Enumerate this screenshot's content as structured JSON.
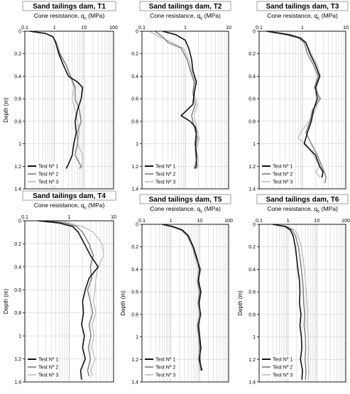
{
  "legend_prefix": "Test Nº ",
  "colors": {
    "test1": "#111111",
    "test2": "#7a7a7a",
    "test3": "#bdbdbd",
    "grid": "#c8c8c8",
    "frame": "#000000"
  },
  "chart_data": [
    {
      "type": "line",
      "title": "Sand tailings dam, T1",
      "xlabel": "Cone resistance, q",
      "xlabel_sub": "c",
      "xlabel_unit": " (MPa)",
      "ylabel": "Depth (m)",
      "xscale": "log",
      "xlim": [
        0.1,
        100
      ],
      "xticks": [
        0.1,
        1,
        10,
        100
      ],
      "xtick_labels": [
        "0.1",
        "1",
        "10",
        "100"
      ],
      "ylim": [
        0,
        1.4
      ],
      "yticks": [
        0,
        0.2,
        0.4,
        0.6,
        0.8,
        1,
        1.2,
        1.4
      ],
      "ytick_labels": [
        "0",
        "0.2",
        "0.4",
        "0.6",
        "0.8",
        "1",
        "1.2",
        "1.4"
      ],
      "legend_position": "bottom-left",
      "series": [
        {
          "name": "1",
          "depth": [
            0.0,
            0.02,
            0.05,
            0.1,
            0.2,
            0.3,
            0.4,
            0.45,
            0.5,
            0.6,
            0.7,
            0.8,
            0.9,
            1.0,
            1.1,
            1.18,
            1.22
          ],
          "qc": [
            0.15,
            0.5,
            0.9,
            1.1,
            1.4,
            2.0,
            3.0,
            6.0,
            9.0,
            8.0,
            6.0,
            5.0,
            5.5,
            4.5,
            4.0,
            3.0,
            2.5
          ]
        },
        {
          "name": "2",
          "depth": [
            0.0,
            0.02,
            0.05,
            0.1,
            0.2,
            0.3,
            0.4,
            0.5,
            0.6,
            0.7,
            0.8,
            0.9,
            1.0,
            1.1,
            1.2,
            1.22
          ],
          "qc": [
            0.15,
            0.5,
            0.9,
            1.1,
            1.5,
            2.5,
            3.5,
            5.0,
            5.0,
            7.0,
            8.0,
            6.0,
            6.0,
            5.0,
            8.0,
            7.0
          ]
        },
        {
          "name": "3",
          "depth": [
            0.0,
            0.02,
            0.05,
            0.1,
            0.2,
            0.3,
            0.4,
            0.5,
            0.6,
            0.7,
            0.8,
            0.9,
            1.0,
            1.1,
            1.2,
            1.22
          ],
          "qc": [
            0.15,
            0.5,
            0.9,
            1.2,
            1.6,
            2.5,
            3.5,
            4.5,
            4.0,
            5.0,
            6.0,
            7.0,
            6.0,
            9.0,
            9.0,
            8.0
          ]
        }
      ]
    },
    {
      "type": "line",
      "title": "Sand tailings dam, T2",
      "xlabel": "Cone resistance, q",
      "xlabel_sub": "c",
      "xlabel_unit": " (MPa)",
      "ylabel": "",
      "xscale": "log",
      "xlim": [
        0.1,
        10
      ],
      "xticks": [
        0.1,
        1,
        10
      ],
      "xtick_labels": [
        "0.1",
        "1",
        "10"
      ],
      "ylim": [
        0,
        1.4
      ],
      "yticks": [
        0,
        0.2,
        0.4,
        0.6,
        0.8,
        1,
        1.2,
        1.4
      ],
      "ytick_labels": [
        "0",
        "0.2",
        "0.4",
        "0.6",
        "0.8",
        "1",
        "1.2",
        "1.4"
      ],
      "legend_position": "bottom-left",
      "series": [
        {
          "name": "1",
          "depth": [
            0.0,
            0.03,
            0.08,
            0.15,
            0.25,
            0.35,
            0.45,
            0.55,
            0.65,
            0.7,
            0.75,
            0.8,
            0.85,
            0.9,
            1.0,
            1.1,
            1.2,
            1.22
          ],
          "qc": [
            0.3,
            0.6,
            1.0,
            1.2,
            1.4,
            1.5,
            1.8,
            1.6,
            1.5,
            1.1,
            0.8,
            1.3,
            1.7,
            1.8,
            1.7,
            1.8,
            1.8,
            1.7
          ]
        },
        {
          "name": "2",
          "depth": [
            0.0,
            0.05,
            0.1,
            0.15,
            0.25,
            0.35,
            0.45,
            0.55,
            0.65,
            0.75,
            0.85,
            0.95,
            1.05,
            1.15,
            1.22
          ],
          "qc": [
            0.2,
            0.3,
            0.4,
            0.8,
            1.1,
            1.3,
            1.6,
            1.5,
            1.7,
            1.4,
            1.6,
            1.9,
            1.7,
            1.8,
            1.6
          ]
        },
        {
          "name": "3",
          "depth": [
            0.0,
            0.05,
            0.1,
            0.15,
            0.25,
            0.35,
            0.45,
            0.55,
            0.65,
            0.75,
            0.85,
            0.95,
            1.05,
            1.15,
            1.22
          ],
          "qc": [
            0.15,
            0.25,
            0.5,
            0.9,
            1.2,
            1.4,
            1.7,
            1.6,
            1.9,
            1.6,
            1.8,
            2.1,
            1.8,
            2.0,
            1.9
          ]
        }
      ]
    },
    {
      "type": "line",
      "title": "Sand tailings dam, T3",
      "xlabel": "Cone resistance, q",
      "xlabel_sub": "c",
      "xlabel_unit": " (MPa)",
      "ylabel": "",
      "xscale": "log",
      "xlim": [
        0.1,
        10
      ],
      "xticks": [
        0.1,
        1,
        10
      ],
      "xtick_labels": [
        "0.1",
        "1",
        "10"
      ],
      "ylim": [
        0,
        1.4
      ],
      "yticks": [
        0,
        0.2,
        0.4,
        0.6,
        0.8,
        1,
        1.2,
        1.4
      ],
      "ytick_labels": [
        "0",
        "0.2",
        "0.4",
        "0.6",
        "0.8",
        "1",
        "1.2",
        "1.4"
      ],
      "legend_position": "bottom-left",
      "series": [
        {
          "name": "1",
          "depth": [
            0.0,
            0.03,
            0.06,
            0.1,
            0.2,
            0.3,
            0.4,
            0.5,
            0.6,
            0.7,
            0.8,
            0.9,
            1.0,
            1.1,
            1.2,
            1.25,
            1.3
          ],
          "qc": [
            0.15,
            0.5,
            0.9,
            1.2,
            1.5,
            2.0,
            2.5,
            2.0,
            2.2,
            1.8,
            1.6,
            1.3,
            1.1,
            2.0,
            2.5,
            3.0,
            2.8
          ]
        },
        {
          "name": "2",
          "depth": [
            0.0,
            0.03,
            0.06,
            0.1,
            0.2,
            0.3,
            0.4,
            0.5,
            0.6,
            0.7,
            0.8,
            0.9,
            1.0,
            1.1,
            1.2,
            1.25,
            1.3,
            1.35
          ],
          "qc": [
            0.15,
            0.4,
            0.8,
            1.1,
            1.3,
            1.8,
            2.3,
            1.9,
            2.6,
            1.7,
            1.5,
            1.2,
            1.6,
            2.2,
            2.8,
            3.2,
            3.5,
            3.3
          ]
        },
        {
          "name": "3",
          "depth": [
            0.0,
            0.03,
            0.06,
            0.1,
            0.2,
            0.3,
            0.4,
            0.5,
            0.6,
            0.7,
            0.8,
            0.9,
            0.95,
            1.0,
            1.1,
            1.2,
            1.25,
            1.3
          ],
          "qc": [
            0.15,
            0.45,
            0.85,
            1.2,
            1.6,
            2.2,
            2.6,
            2.1,
            2.4,
            2.0,
            1.4,
            0.9,
            0.8,
            1.2,
            1.8,
            2.5,
            2.0,
            2.6
          ]
        }
      ]
    },
    {
      "type": "line",
      "title": "Sand tailings dam, T4",
      "xlabel": "Cone resistance, q",
      "xlabel_sub": "c",
      "xlabel_unit": " (MPa)",
      "ylabel": "Depth (m)",
      "xscale": "log",
      "xlim": [
        0.1,
        10
      ],
      "xticks": [
        0.1,
        1,
        10
      ],
      "xtick_labels": [
        "0.1",
        "1",
        "10"
      ],
      "ylim": [
        0,
        1.4
      ],
      "yticks": [
        0,
        0.2,
        0.4,
        0.6,
        0.8,
        1,
        1.2,
        1.4
      ],
      "ytick_labels": [
        "0",
        "0.2",
        "0.4",
        "0.6",
        "0.8",
        "1",
        "1.2",
        "1.4"
      ],
      "legend_position": "bottom-left",
      "series": [
        {
          "name": "1",
          "depth": [
            0.0,
            0.02,
            0.05,
            0.1,
            0.2,
            0.3,
            0.4,
            0.5,
            0.6,
            0.7,
            0.8,
            0.9,
            1.0,
            1.1,
            1.2,
            1.3,
            1.38
          ],
          "qc": [
            0.2,
            0.6,
            1.2,
            1.6,
            2.2,
            3.0,
            4.5,
            2.8,
            2.3,
            2.0,
            2.1,
            1.9,
            2.2,
            2.0,
            2.3,
            1.8,
            1.9
          ]
        },
        {
          "name": "2",
          "depth": [
            0.0,
            0.02,
            0.05,
            0.1,
            0.2,
            0.3,
            0.4,
            0.5,
            0.6,
            0.7,
            0.8,
            0.9,
            1.0,
            1.1,
            1.2,
            1.3,
            1.35
          ],
          "qc": [
            0.3,
            0.8,
            1.5,
            2.0,
            2.8,
            3.5,
            3.0,
            3.2,
            2.6,
            3.0,
            3.4,
            2.8,
            3.1,
            2.7,
            3.0,
            2.6,
            2.8
          ]
        },
        {
          "name": "3",
          "depth": [
            0.0,
            0.02,
            0.05,
            0.1,
            0.2,
            0.3,
            0.4,
            0.5,
            0.6,
            0.7,
            0.8,
            0.9,
            1.0,
            1.1,
            1.2,
            1.3,
            1.35
          ],
          "qc": [
            0.4,
            1.0,
            2.0,
            3.5,
            5.5,
            6.0,
            4.5,
            4.0,
            3.8,
            3.5,
            4.0,
            3.3,
            3.6,
            3.2,
            3.8,
            3.1,
            3.4
          ]
        }
      ]
    },
    {
      "type": "line",
      "title": "Sand tailings dam, T5",
      "xlabel": "Cone resistance, q",
      "xlabel_sub": "c",
      "xlabel_unit": " (MPa)",
      "ylabel": "Depth (m)",
      "xscale": "log",
      "xlim": [
        0.1,
        100
      ],
      "xticks": [
        0.1,
        1,
        10,
        100
      ],
      "xtick_labels": [
        "0.1",
        "1",
        "10",
        "100"
      ],
      "ylim": [
        0,
        1.4
      ],
      "yticks": [
        0,
        0.2,
        0.4,
        0.6,
        0.8,
        1,
        1.2,
        1.4
      ],
      "ytick_labels": [
        "0",
        "0.2",
        "0.4",
        "0.6",
        "0.8",
        "1",
        "1.2",
        "1.4"
      ],
      "legend_position": "bottom-left",
      "series": [
        {
          "name": "1",
          "depth": [
            0.0,
            0.02,
            0.05,
            0.1,
            0.2,
            0.3,
            0.4,
            0.5,
            0.6,
            0.7,
            0.8,
            0.9,
            1.0,
            1.1,
            1.2,
            1.3
          ],
          "qc": [
            0.5,
            1.2,
            2.5,
            4.0,
            6.0,
            8.0,
            10.0,
            9.0,
            11.0,
            9.5,
            10.5,
            9.0,
            10.0,
            11.0,
            9.5,
            12.0
          ]
        },
        {
          "name": "2",
          "depth": [
            0.0,
            0.02,
            0.05,
            0.1,
            0.2,
            0.3,
            0.4,
            0.5,
            0.6,
            0.7,
            0.8,
            0.9,
            1.0,
            1.1,
            1.2,
            1.3
          ],
          "qc": [
            0.5,
            1.1,
            2.3,
            3.8,
            5.8,
            7.5,
            11.0,
            8.5,
            10.0,
            9.0,
            11.0,
            8.5,
            9.5,
            10.0,
            10.5,
            11.0
          ]
        },
        {
          "name": "3",
          "depth": [
            0.0,
            0.02,
            0.05,
            0.1,
            0.2,
            0.3,
            0.4,
            0.5,
            0.6,
            0.7,
            0.8,
            0.9,
            1.0,
            1.1,
            1.2,
            1.3
          ],
          "qc": [
            0.5,
            1.0,
            2.2,
            3.6,
            5.5,
            7.0,
            9.0,
            8.0,
            9.5,
            8.5,
            9.5,
            8.0,
            9.0,
            9.5,
            9.0,
            10.0
          ]
        }
      ]
    },
    {
      "type": "line",
      "title": "Sand tailings dam, T6",
      "xlabel": "Cone resistance, q",
      "xlabel_sub": "c",
      "xlabel_unit": " (MPa)",
      "ylabel": "Depth (m)",
      "xscale": "log",
      "xlim": [
        0.1,
        100
      ],
      "xticks": [
        0.1,
        1,
        10,
        100
      ],
      "xtick_labels": [
        "0.1",
        "1",
        "10",
        "100"
      ],
      "ylim": [
        0,
        1.4
      ],
      "yticks": [
        0,
        0.2,
        0.4,
        0.6,
        0.8,
        1,
        1.2,
        1.4
      ],
      "ytick_labels": [
        "0",
        "0.2",
        "0.4",
        "0.6",
        "0.8",
        "1",
        "1.2",
        "1.4"
      ],
      "legend_position": "bottom-left",
      "series": [
        {
          "name": "1",
          "depth": [
            0.0,
            0.02,
            0.05,
            0.1,
            0.2,
            0.3,
            0.4,
            0.5,
            0.6,
            0.7,
            0.8,
            0.9,
            1.0,
            1.1,
            1.2,
            1.3,
            1.38
          ],
          "qc": [
            0.3,
            0.8,
            1.2,
            1.5,
            1.8,
            2.0,
            2.2,
            2.5,
            2.6,
            2.5,
            2.8,
            2.6,
            2.9,
            3.0,
            2.7,
            3.2,
            3.0
          ]
        },
        {
          "name": "2",
          "depth": [
            0.0,
            0.02,
            0.05,
            0.1,
            0.2,
            0.3,
            0.4,
            0.5,
            0.6,
            0.7,
            0.8,
            0.9,
            1.0,
            1.1,
            1.2,
            1.3,
            1.38
          ],
          "qc": [
            0.3,
            0.9,
            1.4,
            1.8,
            2.3,
            2.6,
            2.9,
            3.2,
            3.4,
            3.5,
            3.8,
            3.6,
            4.0,
            4.1,
            3.9,
            4.2,
            4.0
          ]
        },
        {
          "name": "3",
          "depth": [
            0.0,
            0.02,
            0.05,
            0.1,
            0.2,
            0.3,
            0.4,
            0.5,
            0.6,
            0.7,
            0.8,
            0.9,
            1.0,
            1.1,
            1.2,
            1.3,
            1.38
          ],
          "qc": [
            0.3,
            1.0,
            1.7,
            2.2,
            2.9,
            3.3,
            3.7,
            4.0,
            4.3,
            4.5,
            4.8,
            4.6,
            5.0,
            5.2,
            4.9,
            5.3,
            5.1
          ]
        }
      ]
    }
  ]
}
